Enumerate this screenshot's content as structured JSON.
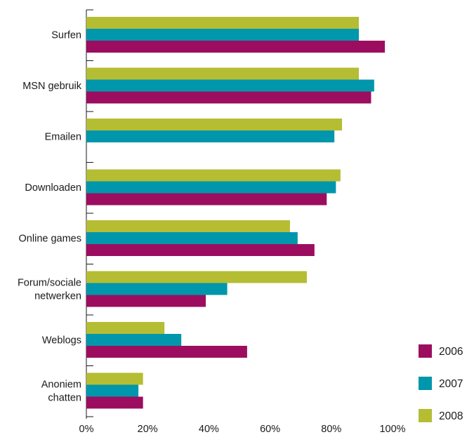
{
  "chart_data": {
    "type": "bar",
    "orientation": "horizontal",
    "categories": [
      "Surfen",
      "MSN gebruik",
      "Emailen",
      "Downloaden",
      "Online games",
      "Forum/sociale netwerken",
      "Weblogs",
      "Anoniem chatten"
    ],
    "category_lines": [
      [
        "Surfen"
      ],
      [
        "MSN gebruik"
      ],
      [
        "Emailen"
      ],
      [
        "Downloaden"
      ],
      [
        "Online games"
      ],
      [
        "Forum/sociale",
        "netwerken"
      ],
      [
        "Weblogs"
      ],
      [
        "Anoniem",
        "chatten"
      ]
    ],
    "series": [
      {
        "name": "2006",
        "color": "#9c0d5f",
        "values": [
          97.5,
          93,
          null,
          78.5,
          74.5,
          39,
          52.5,
          18.5
        ]
      },
      {
        "name": "2007",
        "color": "#0096ab",
        "values": [
          89,
          94,
          81,
          81.5,
          69,
          46,
          31,
          17
        ]
      },
      {
        "name": "2008",
        "color": "#b5bd33",
        "values": [
          89,
          89,
          83.5,
          83,
          66.5,
          72,
          25.5,
          18.5
        ]
      }
    ],
    "x_ticks": [
      "0%",
      "20%",
      "40%",
      "60%",
      "80%",
      "100%"
    ],
    "xlim": [
      0,
      100
    ],
    "grid": false,
    "legend_position": "bottom-right",
    "title": "",
    "xlabel": "",
    "ylabel": ""
  }
}
